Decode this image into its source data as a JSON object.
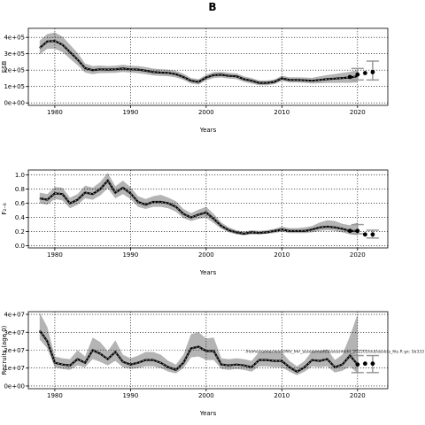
{
  "figure_title": "B",
  "chart_data": [
    {
      "type": "line",
      "title": "",
      "xlabel": "Years",
      "ylabel": "SSB",
      "xlim": [
        1976.5,
        2024
      ],
      "ylim": [
        -15000,
        455000
      ],
      "grid": true,
      "xticks": [
        1980,
        1990,
        2000,
        2010,
        2020
      ],
      "xtick_labels": [
        "1980",
        "1990",
        "2000",
        "2010",
        "2020"
      ],
      "yticks": [
        0,
        100000,
        200000,
        300000,
        400000
      ],
      "ytick_labels": [
        "0e+00",
        "1e+05",
        "2e+05",
        "3e+05",
        "4e+05"
      ],
      "colors": {
        "band": "#b4b4b4",
        "line": "#000000",
        "dash": "#888888"
      },
      "series": [
        {
          "x": [
            1978,
            1979,
            1980,
            1981,
            1982,
            1983,
            1984,
            1985,
            1986,
            1987,
            1988,
            1989,
            1990,
            1991,
            1992,
            1993,
            1994,
            1995,
            1996,
            1997,
            1998,
            1999,
            2000,
            2001,
            2002,
            2003,
            2004,
            2005,
            2006,
            2007,
            2008,
            2009,
            2010,
            2011,
            2012,
            2013,
            2014,
            2015,
            2016,
            2017,
            2018,
            2019,
            2020
          ],
          "values": [
            335000,
            375000,
            378000,
            355000,
            310000,
            265000,
            212000,
            200000,
            205000,
            203000,
            205000,
            210000,
            205000,
            203000,
            197000,
            188000,
            185000,
            183000,
            175000,
            158000,
            135000,
            128000,
            155000,
            170000,
            172000,
            165000,
            162000,
            145000,
            135000,
            122000,
            122000,
            128000,
            150000,
            140000,
            140000,
            138000,
            135000,
            140000,
            145000,
            148000,
            152000,
            155000,
            162000
          ],
          "lower": [
            295000,
            330000,
            330000,
            310000,
            270000,
            230000,
            185000,
            175000,
            182000,
            182000,
            184000,
            188000,
            185000,
            181000,
            175000,
            167000,
            165000,
            163000,
            155000,
            140000,
            118000,
            112000,
            138000,
            152000,
            155000,
            148000,
            145000,
            128000,
            118000,
            108000,
            108000,
            114000,
            134000,
            125000,
            125000,
            122000,
            118000,
            120000,
            122000,
            122000,
            123000,
            122000,
            125000
          ],
          "upper": [
            380000,
            420000,
            430000,
            405000,
            355000,
            305000,
            240000,
            225000,
            228000,
            225000,
            227000,
            233000,
            227000,
            225000,
            219000,
            210000,
            205000,
            203000,
            195000,
            178000,
            152000,
            145000,
            172000,
            188000,
            190000,
            183000,
            180000,
            162000,
            152000,
            137000,
            137000,
            143000,
            166000,
            156000,
            156000,
            155000,
            153000,
            162000,
            170000,
            176000,
            183000,
            190000,
            200000
          ]
        }
      ],
      "points": {
        "x": [
          2019,
          2020,
          2021,
          2022
        ],
        "values": [
          158000,
          173000,
          182000,
          188000
        ]
      },
      "error_bars": [
        {
          "x": 2020,
          "low": 140000,
          "high": 210000
        },
        {
          "x": 2022,
          "low": 140000,
          "high": 255000
        }
      ]
    },
    {
      "type": "line",
      "title": "",
      "xlabel": "Years",
      "ylabel": "F₂₋₆",
      "xlim": [
        1976.5,
        2024
      ],
      "ylim": [
        -0.03,
        1.07
      ],
      "grid": true,
      "xticks": [
        1980,
        1990,
        2000,
        2010,
        2020
      ],
      "xtick_labels": [
        "1980",
        "1990",
        "2000",
        "2010",
        "2020"
      ],
      "yticks": [
        0,
        0.2,
        0.4,
        0.6,
        0.8,
        1.0
      ],
      "ytick_labels": [
        "0.0",
        "0.2",
        "0.4",
        "0.6",
        "0.8",
        "1.0"
      ],
      "colors": {
        "band": "#b4b4b4",
        "line": "#000000",
        "dash": "#888888"
      },
      "series": [
        {
          "x": [
            1978,
            1979,
            1980,
            1981,
            1982,
            1983,
            1984,
            1985,
            1986,
            1987,
            1988,
            1989,
            1990,
            1991,
            1992,
            1993,
            1994,
            1995,
            1996,
            1997,
            1998,
            1999,
            2000,
            2001,
            2002,
            2003,
            2004,
            2005,
            2006,
            2007,
            2008,
            2009,
            2010,
            2011,
            2012,
            2013,
            2014,
            2015,
            2016,
            2017,
            2018,
            2019,
            2020
          ],
          "values": [
            0.67,
            0.65,
            0.74,
            0.73,
            0.6,
            0.65,
            0.75,
            0.73,
            0.8,
            0.92,
            0.75,
            0.82,
            0.74,
            0.62,
            0.58,
            0.62,
            0.62,
            0.6,
            0.55,
            0.45,
            0.4,
            0.44,
            0.47,
            0.38,
            0.28,
            0.22,
            0.19,
            0.17,
            0.19,
            0.18,
            0.19,
            0.21,
            0.23,
            0.21,
            0.21,
            0.21,
            0.23,
            0.26,
            0.27,
            0.26,
            0.24,
            0.21,
            0.21
          ],
          "lower": [
            0.6,
            0.58,
            0.66,
            0.64,
            0.53,
            0.58,
            0.67,
            0.65,
            0.71,
            0.81,
            0.67,
            0.73,
            0.66,
            0.55,
            0.52,
            0.55,
            0.55,
            0.53,
            0.48,
            0.39,
            0.35,
            0.38,
            0.4,
            0.32,
            0.24,
            0.19,
            0.16,
            0.15,
            0.16,
            0.16,
            0.17,
            0.18,
            0.2,
            0.18,
            0.18,
            0.18,
            0.19,
            0.21,
            0.22,
            0.21,
            0.19,
            0.16,
            0.15
          ],
          "upper": [
            0.75,
            0.73,
            0.83,
            0.82,
            0.68,
            0.73,
            0.85,
            0.82,
            0.9,
            1.03,
            0.84,
            0.92,
            0.83,
            0.7,
            0.66,
            0.7,
            0.72,
            0.68,
            0.63,
            0.52,
            0.46,
            0.51,
            0.55,
            0.45,
            0.33,
            0.26,
            0.22,
            0.2,
            0.22,
            0.21,
            0.22,
            0.24,
            0.27,
            0.25,
            0.25,
            0.26,
            0.28,
            0.33,
            0.36,
            0.35,
            0.31,
            0.29,
            0.33
          ]
        }
      ],
      "points": {
        "x": [
          2019,
          2020,
          2021,
          2022
        ],
        "values": [
          0.21,
          0.21,
          0.16,
          0.16
        ]
      },
      "error_bars": [
        {
          "x": 2020,
          "low": 0.17,
          "high": 0.3
        },
        {
          "x": 2022,
          "low": 0.11,
          "high": 0.22
        }
      ]
    },
    {
      "type": "line",
      "title": "",
      "xlabel": "Years",
      "ylabel": "Recruits (age 0)",
      "xlim": [
        1976.5,
        2024
      ],
      "ylim": [
        -1500000,
        41500000
      ],
      "grid": true,
      "xticks": [
        1980,
        1990,
        2000,
        2010,
        2020
      ],
      "xtick_labels": [
        "1980",
        "1990",
        "2000",
        "2010",
        "2020"
      ],
      "yticks": [
        0,
        10000000,
        20000000,
        30000000,
        40000000
      ],
      "ytick_labels": [
        "0e+00",
        "1e+07",
        "2e+07",
        "3e+07",
        "4e+07"
      ],
      "colors": {
        "band": "#b4b4b4",
        "line": "#000000",
        "dash": "#888888"
      },
      "series": [
        {
          "x": [
            1978,
            1979,
            1980,
            1981,
            1982,
            1983,
            1984,
            1985,
            1986,
            1987,
            1988,
            1989,
            1990,
            1991,
            1992,
            1993,
            1994,
            1995,
            1996,
            1997,
            1998,
            1999,
            2000,
            2001,
            2002,
            2003,
            2004,
            2005,
            2006,
            2007,
            2008,
            2009,
            2010,
            2011,
            2012,
            2013,
            2014,
            2015,
            2016,
            2017,
            2018,
            2019,
            2020
          ],
          "values": [
            31000000,
            25000000,
            13000000,
            12000000,
            11500000,
            15000000,
            13000000,
            20000000,
            18000000,
            15000000,
            19000000,
            13500000,
            12000000,
            13000000,
            14500000,
            14500000,
            13000000,
            10500000,
            9000000,
            13000000,
            21000000,
            22000000,
            19500000,
            19500000,
            12000000,
            11500000,
            12000000,
            11500000,
            10500000,
            14500000,
            14500000,
            14000000,
            14000000,
            10500000,
            8000000,
            10500000,
            14500000,
            14000000,
            15000000,
            10500000,
            12000000,
            17000000,
            12000000
          ],
          "lower": [
            26000000,
            21000000,
            10500000,
            9500000,
            9000000,
            11500000,
            10500000,
            15000000,
            13500000,
            11500000,
            14000000,
            10500000,
            9500000,
            10000000,
            11000000,
            11000000,
            10000000,
            8000000,
            7000000,
            10000000,
            16000000,
            16500000,
            14500000,
            14500000,
            9500000,
            9000000,
            9500000,
            9000000,
            8000000,
            11000000,
            11000000,
            10500000,
            10500000,
            8000000,
            6000000,
            8000000,
            11000000,
            10500000,
            11000000,
            7500000,
            8500000,
            11000000,
            7000000
          ],
          "upper": [
            41000000,
            33000000,
            16500000,
            15500000,
            15000000,
            20000000,
            16500000,
            27000000,
            24500000,
            19500000,
            25500000,
            17500000,
            15500000,
            17000000,
            19000000,
            19000000,
            17500000,
            14000000,
            12000000,
            17500000,
            29000000,
            30000000,
            26500000,
            27000000,
            15500000,
            15000000,
            15500000,
            15000000,
            14000000,
            19000000,
            19500000,
            19000000,
            19000000,
            14000000,
            11000000,
            14000000,
            19500000,
            19500000,
            20500000,
            14500000,
            17500000,
            28000000,
            40000000
          ]
        }
      ],
      "points": {
        "x": [
          2020,
          2021,
          2022
        ],
        "values": [
          12000000,
          12500000,
          12500000
        ]
      },
      "error_bars": [
        {
          "x": 2020,
          "low": 7500000,
          "high": 17000000
        },
        {
          "x": 2022,
          "low": 7500000,
          "high": 17000000
        }
      ],
      "annotation": "/home/runner/work/fifo_lmr_assessment/assessment_202205/out/assess_fits.R  gx: 5b333"
    }
  ]
}
